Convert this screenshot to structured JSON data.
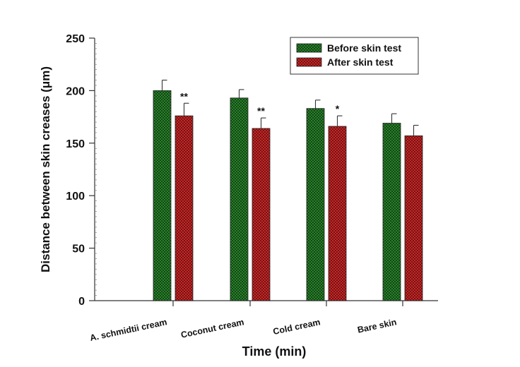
{
  "chart_data": {
    "type": "bar",
    "title": "",
    "xlabel": "Time (min)",
    "ylabel": "Distance between skin creases (μm)",
    "ylim": [
      0,
      250
    ],
    "yticks": [
      "0",
      "50",
      "100",
      "150",
      "200",
      "250"
    ],
    "ytick_values": [
      0,
      50,
      100,
      150,
      200,
      250
    ],
    "minor_tick_step": 5,
    "grid": false,
    "legend_position": "top-right",
    "categories": [
      "A. schmidtii cream",
      "Coconut cream",
      "Cold cream",
      "Bare skin"
    ],
    "series": [
      {
        "name": "Before skin test",
        "color": "#2e7d2e",
        "values": [
          200,
          193,
          183,
          169
        ],
        "errors": [
          10,
          8,
          8,
          9
        ],
        "annotations": [
          "",
          "",
          "",
          ""
        ]
      },
      {
        "name": "After skin test",
        "color": "#b32020",
        "values": [
          176,
          164,
          166,
          157
        ],
        "errors": [
          12,
          10,
          10,
          10
        ],
        "annotations": [
          "**",
          "**",
          "*",
          ""
        ]
      }
    ]
  }
}
